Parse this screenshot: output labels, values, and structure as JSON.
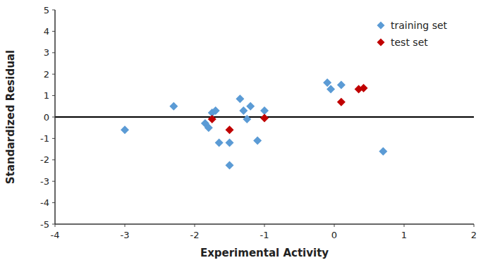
{
  "chart_data": {
    "type": "scatter",
    "xlabel": "Experimental Activity",
    "ylabel": "Standardized Residual",
    "series": [
      {
        "name": "training set",
        "color": "#5B9BD5",
        "x": [
          -3.0,
          -2.3,
          -1.85,
          -1.8,
          -1.75,
          -1.7,
          -1.65,
          -1.5,
          -1.5,
          -1.35,
          -1.3,
          -1.25,
          -1.2,
          -1.1,
          -1.0,
          -0.1,
          -0.05,
          0.1,
          0.7
        ],
        "values": [
          -0.6,
          0.5,
          -0.3,
          -0.5,
          0.2,
          0.3,
          -1.2,
          -1.2,
          -2.25,
          0.85,
          0.3,
          -0.1,
          0.5,
          -1.1,
          0.3,
          1.6,
          1.3,
          1.5,
          -1.6
        ]
      },
      {
        "name": "test set",
        "color": "#C00000",
        "x": [
          -1.75,
          -1.5,
          -1.0,
          0.1,
          0.35,
          0.42
        ],
        "values": [
          -0.1,
          -0.6,
          -0.05,
          0.7,
          1.3,
          1.35
        ]
      }
    ],
    "hline": 0,
    "xlim": [
      -4,
      2
    ],
    "ylim": [
      -5,
      5
    ],
    "xticks": [
      -4,
      -3,
      -2,
      -1,
      0,
      1,
      2
    ],
    "yticks": [
      -5,
      -4,
      -3,
      -2,
      -1,
      0,
      1,
      2,
      3,
      4,
      5
    ],
    "marker": "diamond",
    "legend": "upper right",
    "grid": false
  }
}
